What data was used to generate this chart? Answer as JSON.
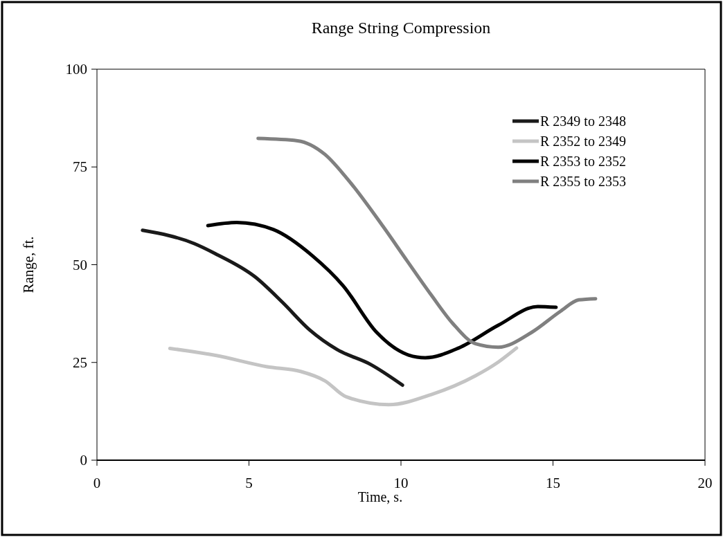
{
  "chart_data": {
    "type": "line",
    "title": "Range String Compression",
    "xlabel": "Time, s.",
    "ylabel": "Range, ft.",
    "xlim": [
      0,
      20
    ],
    "xticks": [
      0,
      5,
      10,
      15,
      20
    ],
    "ylim": [
      0,
      100
    ],
    "yticks": [
      0,
      25,
      50,
      75,
      100
    ],
    "grid": false,
    "legend": "top right",
    "marker": "none",
    "line_style": "solid",
    "series": [
      {
        "name": "R 2349 to 2348",
        "color": "#1a1a1a",
        "x": [
          1.5,
          3.2,
          3.9,
          5.2,
          6.1,
          7.0,
          7.9,
          9.0,
          10.05
        ],
        "values": [
          58.8,
          55.4,
          52.8,
          46.9,
          40.4,
          33.3,
          28.3,
          24.5,
          19.2
        ]
      },
      {
        "name": "R 2352 to 2349",
        "color": "#c4c4c4",
        "x": [
          2.4,
          3.9,
          5.6,
          6.7,
          7.5,
          8.2,
          9.6,
          11.0,
          12.45,
          13.2,
          13.8
        ],
        "values": [
          28.6,
          26.8,
          23.9,
          22.7,
          20.3,
          16.2,
          14.2,
          16.8,
          21.6,
          25.1,
          28.7
        ]
      },
      {
        "name": "R 2353 to 2352",
        "color": "#000000",
        "x": [
          3.65,
          4.6,
          5.8,
          7.1,
          8.1,
          9.2,
          10.25,
          10.8,
          11.9,
          13.2,
          14.5,
          15.1
        ],
        "values": [
          60.0,
          60.8,
          59.0,
          52.2,
          44.6,
          32.7,
          26.9,
          26.2,
          28.7,
          34.5,
          39.3,
          39.1
        ]
      },
      {
        "name": "R 2355 to 2353",
        "color": "#808080",
        "x": [
          5.3,
          6.6,
          7.5,
          8.2,
          9.4,
          10.2,
          11.0,
          11.7,
          12.45,
          13.2,
          14.3,
          15.25,
          15.85,
          16.4
        ],
        "values": [
          82.3,
          81.7,
          78.2,
          72.3,
          59.9,
          51.0,
          42.2,
          35.0,
          29.8,
          28.9,
          32.7,
          38.1,
          41.0,
          41.3
        ]
      }
    ]
  }
}
